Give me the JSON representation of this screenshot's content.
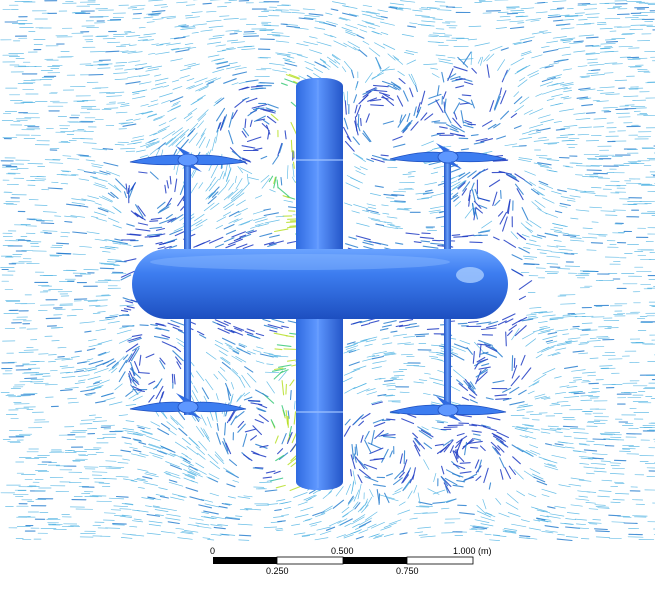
{
  "colors": {
    "background": "#ffffff",
    "vector_light": "#4fb3e3",
    "vector_mid": "#2a7fd0",
    "vector_dark": "#1f3cc4",
    "vector_high": "#b8e02a",
    "vector_peak": "#3cc97a",
    "body_surface": "#3d7df0",
    "body_highlight": "#7fb0ff",
    "body_shadow": "#1d4fc0",
    "scale_bar": "#000000"
  },
  "scale_bar": {
    "labels_top": [
      "0",
      "0.500",
      "1.000 (m)"
    ],
    "labels_bottom": [
      "0.250",
      "0.750"
    ]
  }
}
